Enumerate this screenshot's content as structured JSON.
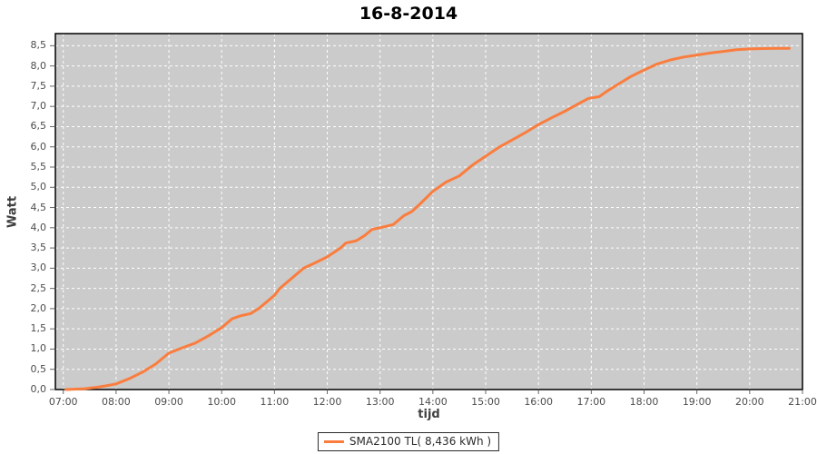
{
  "chart": {
    "title": "16-8-2014",
    "x_axis_label": "tijd",
    "y_axis_label": "Watt",
    "legend": {
      "label": "SMA2100 TL( 8,436 kWh )"
    },
    "colors": {
      "plot_bg": "#cbcbcb",
      "grid": "#ffffff",
      "line": "#fa7d3e",
      "border": "#000000",
      "tick": "#666666",
      "tick_text": "#4d4d4d"
    }
  },
  "chart_data": {
    "type": "line",
    "title": "16-8-2014",
    "xlabel": "tijd",
    "ylabel": "Watt",
    "grid": true,
    "legend_position": "bottom",
    "xlim": [
      6.85,
      21.0
    ],
    "ylim": [
      0,
      8.8
    ],
    "x_ticks": [
      {
        "value": 7,
        "label": "07:00"
      },
      {
        "value": 8,
        "label": "08:00"
      },
      {
        "value": 9,
        "label": "09:00"
      },
      {
        "value": 10,
        "label": "10:00"
      },
      {
        "value": 11,
        "label": "11:00"
      },
      {
        "value": 12,
        "label": "12:00"
      },
      {
        "value": 13,
        "label": "13:00"
      },
      {
        "value": 14,
        "label": "14:00"
      },
      {
        "value": 15,
        "label": "15:00"
      },
      {
        "value": 16,
        "label": "16:00"
      },
      {
        "value": 17,
        "label": "17:00"
      },
      {
        "value": 18,
        "label": "18:00"
      },
      {
        "value": 19,
        "label": "19:00"
      },
      {
        "value": 20,
        "label": "20:00"
      },
      {
        "value": 21,
        "label": "21:00"
      }
    ],
    "y_ticks": [
      {
        "value": 0.0,
        "label": "0,0"
      },
      {
        "value": 0.5,
        "label": "0,5"
      },
      {
        "value": 1.0,
        "label": "1,0"
      },
      {
        "value": 1.5,
        "label": "1,5"
      },
      {
        "value": 2.0,
        "label": "2,0"
      },
      {
        "value": 2.5,
        "label": "2,5"
      },
      {
        "value": 3.0,
        "label": "3,0"
      },
      {
        "value": 3.5,
        "label": "3,5"
      },
      {
        "value": 4.0,
        "label": "4,0"
      },
      {
        "value": 4.5,
        "label": "4,5"
      },
      {
        "value": 5.0,
        "label": "5,0"
      },
      {
        "value": 5.5,
        "label": "5,5"
      },
      {
        "value": 6.0,
        "label": "6,0"
      },
      {
        "value": 6.5,
        "label": "6,5"
      },
      {
        "value": 7.0,
        "label": "7,0"
      },
      {
        "value": 7.5,
        "label": "7,5"
      },
      {
        "value": 8.0,
        "label": "8,0"
      },
      {
        "value": 8.5,
        "label": "8,5"
      }
    ],
    "series": [
      {
        "name": "SMA2100 TL( 8,436 kWh )",
        "color": "#fa7d3e",
        "total_kwh": "8,436 kWh",
        "points": [
          [
            7.05,
            0.0
          ],
          [
            7.2,
            0.01
          ],
          [
            7.4,
            0.02
          ],
          [
            7.6,
            0.05
          ],
          [
            7.8,
            0.09
          ],
          [
            8.0,
            0.14
          ],
          [
            8.25,
            0.27
          ],
          [
            8.5,
            0.43
          ],
          [
            8.75,
            0.63
          ],
          [
            9.0,
            0.9
          ],
          [
            9.25,
            1.03
          ],
          [
            9.5,
            1.15
          ],
          [
            9.75,
            1.33
          ],
          [
            10.0,
            1.53
          ],
          [
            10.2,
            1.75
          ],
          [
            10.35,
            1.82
          ],
          [
            10.55,
            1.88
          ],
          [
            10.7,
            2.0
          ],
          [
            11.0,
            2.33
          ],
          [
            11.1,
            2.5
          ],
          [
            11.3,
            2.72
          ],
          [
            11.55,
            3.0
          ],
          [
            11.75,
            3.12
          ],
          [
            12.0,
            3.28
          ],
          [
            12.25,
            3.5
          ],
          [
            12.35,
            3.62
          ],
          [
            12.55,
            3.68
          ],
          [
            12.7,
            3.8
          ],
          [
            12.85,
            3.96
          ],
          [
            13.0,
            4.0
          ],
          [
            13.25,
            4.08
          ],
          [
            13.45,
            4.3
          ],
          [
            13.6,
            4.4
          ],
          [
            13.75,
            4.58
          ],
          [
            14.0,
            4.9
          ],
          [
            14.25,
            5.13
          ],
          [
            14.5,
            5.28
          ],
          [
            14.75,
            5.55
          ],
          [
            15.0,
            5.77
          ],
          [
            15.25,
            5.99
          ],
          [
            15.5,
            6.17
          ],
          [
            15.75,
            6.35
          ],
          [
            16.0,
            6.55
          ],
          [
            16.25,
            6.72
          ],
          [
            16.5,
            6.88
          ],
          [
            16.75,
            7.06
          ],
          [
            16.95,
            7.2
          ],
          [
            17.15,
            7.24
          ],
          [
            17.3,
            7.38
          ],
          [
            17.5,
            7.54
          ],
          [
            17.75,
            7.74
          ],
          [
            18.0,
            7.9
          ],
          [
            18.25,
            8.05
          ],
          [
            18.5,
            8.15
          ],
          [
            18.75,
            8.22
          ],
          [
            19.0,
            8.27
          ],
          [
            19.25,
            8.32
          ],
          [
            19.5,
            8.36
          ],
          [
            19.75,
            8.4
          ],
          [
            20.0,
            8.42
          ],
          [
            20.25,
            8.43
          ],
          [
            20.5,
            8.435
          ],
          [
            20.75,
            8.436
          ]
        ]
      }
    ]
  }
}
